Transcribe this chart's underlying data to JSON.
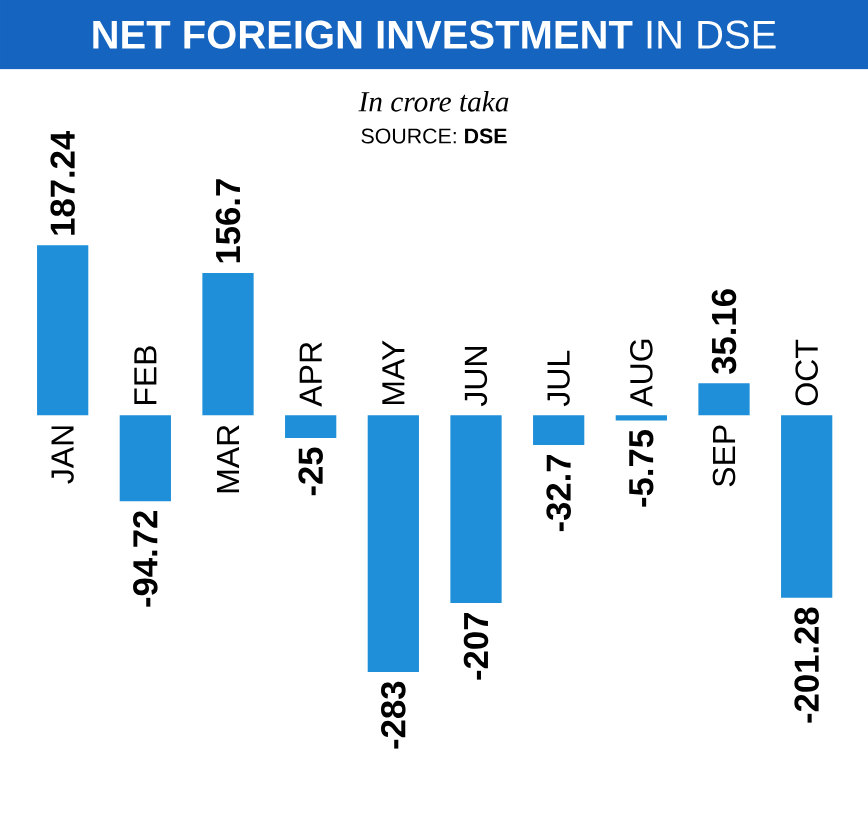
{
  "chart_data": {
    "type": "bar",
    "title": "**NET FOREIGN INVESTMENT** IN DSE",
    "subtitle": "In crore taka",
    "annotations": [
      "SOURCE: **DSE**"
    ],
    "categories": [
      "JAN",
      "FEB",
      "MAR",
      "APR",
      "MAY",
      "JUN",
      "JUL",
      "AUG",
      "SEP",
      "OCT"
    ],
    "values": [
      187.24,
      -94.72,
      156.7,
      -25,
      -283,
      -207,
      -32.7,
      -5.75,
      35.16,
      -201.28
    ],
    "color": "#1e8fd8",
    "data_labels": true
  }
}
